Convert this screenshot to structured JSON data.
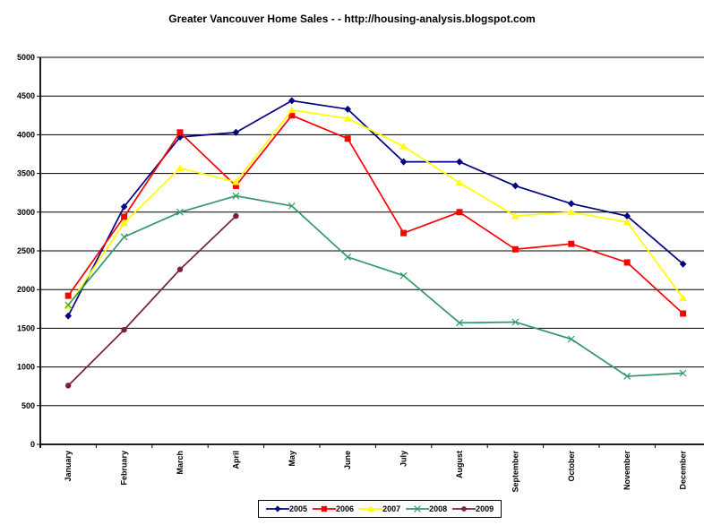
{
  "page": {
    "title": "Greater Vancouver Home Sales - - http://housing-analysis.blogspot.com"
  },
  "chart_data": {
    "type": "line",
    "title": "Greater Vancouver Home Sales - - http://housing-analysis.blogspot.com",
    "categories": [
      "January",
      "February",
      "March",
      "April",
      "May",
      "June",
      "July",
      "August",
      "September",
      "October",
      "November",
      "December"
    ],
    "series": [
      {
        "name": "2005",
        "color": "#000080",
        "marker": "diamond",
        "values": [
          1660,
          3070,
          3970,
          4030,
          4440,
          4330,
          3650,
          3650,
          3340,
          3110,
          2950,
          2330
        ]
      },
      {
        "name": "2006",
        "color": "#FF0000",
        "marker": "square",
        "values": [
          1920,
          2940,
          4030,
          3340,
          4250,
          3950,
          2730,
          3000,
          2520,
          2590,
          2350,
          1690
        ]
      },
      {
        "name": "2007",
        "color": "#FFFF00",
        "marker": "triangle",
        "values": [
          1790,
          2860,
          3570,
          3390,
          4320,
          4210,
          3850,
          3380,
          2950,
          3000,
          2870,
          1890
        ]
      },
      {
        "name": "2008",
        "color": "#339966",
        "marker": "x",
        "values": [
          1800,
          2680,
          3000,
          3210,
          3080,
          2420,
          2180,
          1570,
          1580,
          1360,
          880,
          920
        ]
      },
      {
        "name": "2009",
        "color": "#7A2040",
        "marker": "circle",
        "values": [
          760,
          1480,
          2260,
          2950,
          null,
          null,
          null,
          null,
          null,
          null,
          null,
          null
        ]
      }
    ],
    "ylim": [
      0,
      5000
    ],
    "ytick_step": 500,
    "grid": "horizontal",
    "axis_color": "#000000",
    "legend_position": "bottom-center"
  }
}
